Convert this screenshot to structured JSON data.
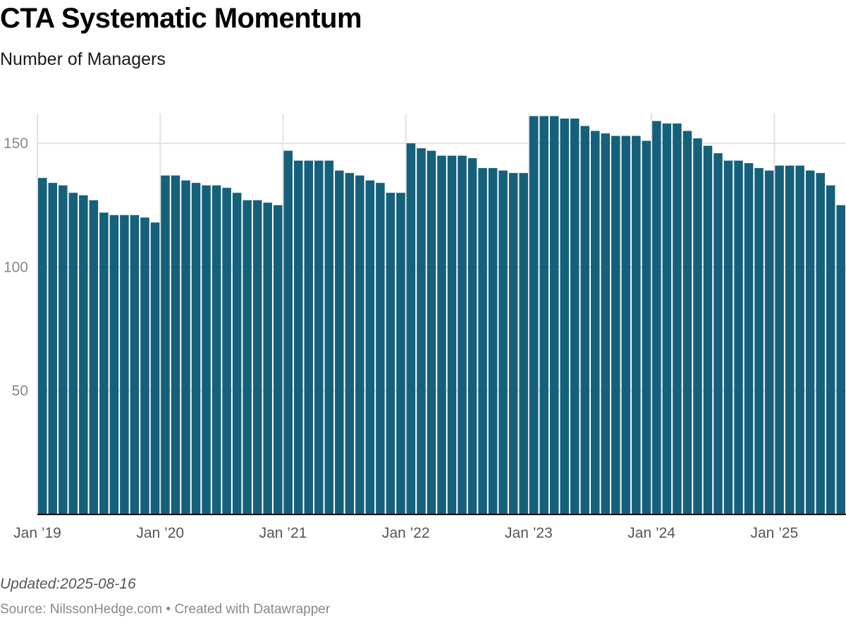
{
  "header": {
    "title": "CTA Systematic Momentum",
    "subtitle": "Number of Managers"
  },
  "footer": {
    "updated": "Updated:2025-08-16",
    "source_prefix": "Source: ",
    "source_name": "NilssonHedge.com",
    "separator": " • ",
    "credit": "Created with Datawrapper"
  },
  "colors": {
    "bar": "#15607a",
    "grid": "#e2e2e2",
    "axis": "#000000"
  },
  "chart_data": {
    "type": "bar",
    "title": "CTA Systematic Momentum",
    "subtitle": "Number of Managers",
    "start_month": "2019-01",
    "frequency": "monthly",
    "ylim": [
      0,
      162
    ],
    "yticks": [
      50,
      100,
      150
    ],
    "xticks": [
      {
        "label": "Jan ’19",
        "month": "2019-01"
      },
      {
        "label": "Jan ’20",
        "month": "2020-01"
      },
      {
        "label": "Jan ’21",
        "month": "2021-01"
      },
      {
        "label": "Jan ’22",
        "month": "2022-01"
      },
      {
        "label": "Jan ’23",
        "month": "2023-01"
      },
      {
        "label": "Jan ’24",
        "month": "2024-01"
      },
      {
        "label": "Jan ’25",
        "month": "2025-01"
      }
    ],
    "grid": true,
    "values": [
      136,
      134,
      133,
      130,
      129,
      127,
      122,
      121,
      121,
      121,
      120,
      118,
      137,
      137,
      135,
      134,
      133,
      133,
      132,
      130,
      127,
      127,
      126,
      125,
      147,
      143,
      143,
      143,
      143,
      139,
      138,
      137,
      135,
      134,
      130,
      130,
      150,
      148,
      147,
      145,
      145,
      145,
      144,
      140,
      140,
      139,
      138,
      138,
      161,
      161,
      161,
      160,
      160,
      157,
      155,
      154,
      153,
      153,
      153,
      151,
      159,
      158,
      158,
      155,
      152,
      149,
      146,
      143,
      143,
      142,
      140,
      139,
      141,
      141,
      141,
      139,
      138,
      133,
      125
    ]
  }
}
